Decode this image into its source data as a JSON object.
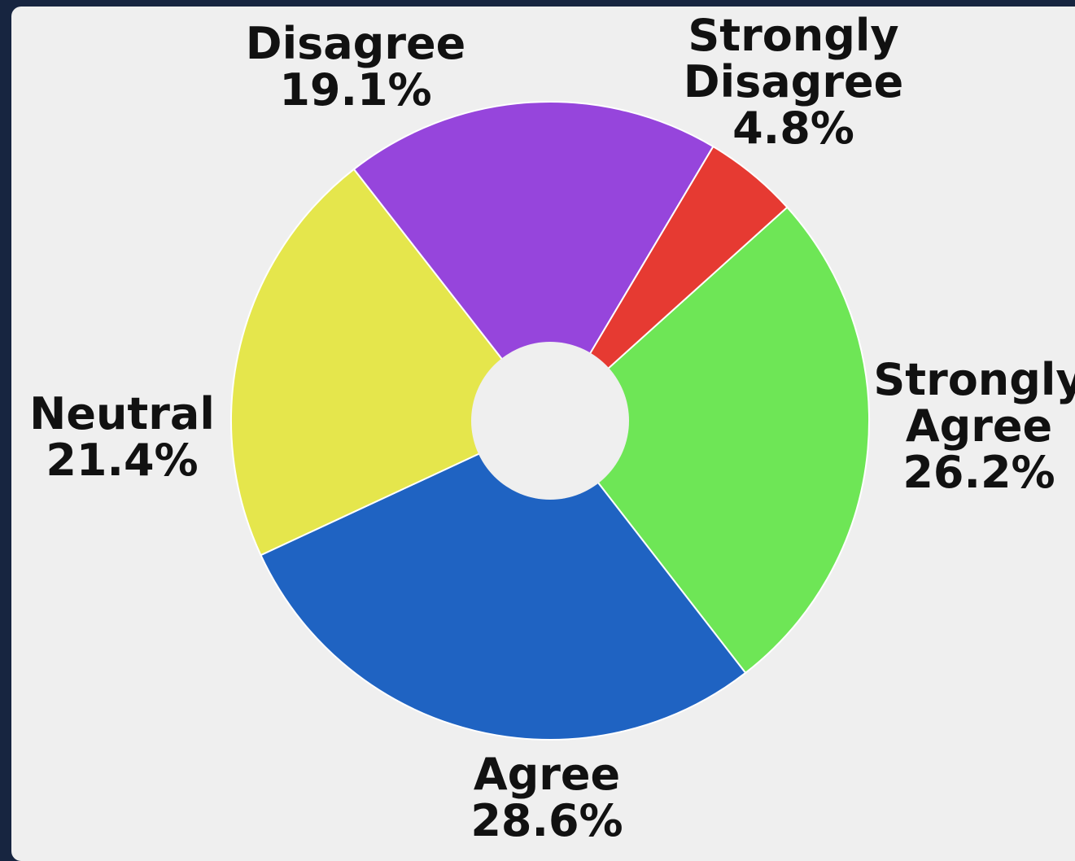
{
  "chart_data": {
    "type": "pie",
    "donut": true,
    "categories": [
      "Strongly Agree",
      "Agree",
      "Neutral",
      "Disagree",
      "Strongly Disagree"
    ],
    "values": [
      26.2,
      28.6,
      21.4,
      19.1,
      4.8
    ],
    "value_labels": [
      "26.2%",
      "28.6%",
      "21.4%",
      "19.1%",
      "4.8%"
    ],
    "colors": [
      "#6ee656",
      "#1f63c2",
      "#e5e64c",
      "#9645dc",
      "#e63a32"
    ],
    "title": "",
    "legend": "none",
    "labels_placement": "outside"
  }
}
